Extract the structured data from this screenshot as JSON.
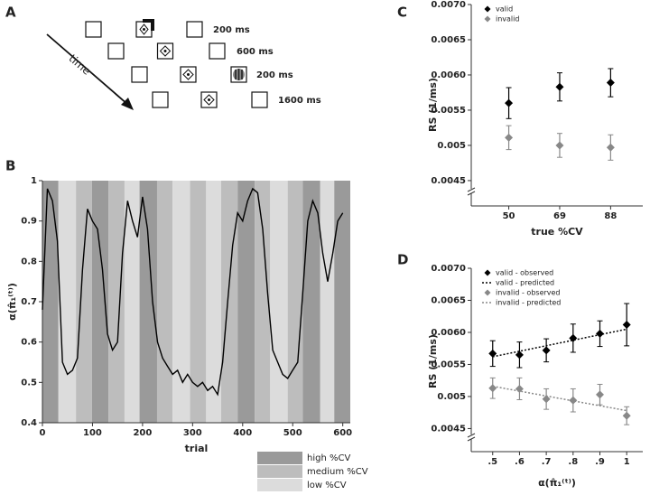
{
  "panel_a": {
    "label": "A",
    "arrow_label": "time",
    "durations": [
      "200 ms",
      "600 ms",
      "200 ms",
      "1600 ms"
    ]
  },
  "chart_data": [
    {
      "type": "line",
      "label": "B",
      "xlabel": "trial",
      "ylabel": "α(π̂₁⁽ᵗ⁾)",
      "x": [
        0,
        10,
        20,
        30,
        40,
        50,
        60,
        70,
        80,
        90,
        100,
        110,
        120,
        130,
        140,
        150,
        160,
        170,
        180,
        190,
        200,
        210,
        220,
        230,
        240,
        250,
        260,
        270,
        280,
        290,
        300,
        310,
        320,
        330,
        340,
        350,
        360,
        370,
        380,
        390,
        400,
        410,
        420,
        430,
        440,
        450,
        460,
        470,
        480,
        490,
        500,
        510,
        520,
        530,
        540,
        550,
        560,
        570,
        580,
        590,
        600
      ],
      "series": [
        {
          "color": "#000000",
          "values": [
            0.68,
            0.98,
            0.95,
            0.85,
            0.55,
            0.52,
            0.53,
            0.56,
            0.78,
            0.93,
            0.9,
            0.88,
            0.78,
            0.62,
            0.58,
            0.6,
            0.82,
            0.95,
            0.9,
            0.86,
            0.96,
            0.88,
            0.7,
            0.6,
            0.56,
            0.54,
            0.52,
            0.53,
            0.5,
            0.52,
            0.5,
            0.49,
            0.5,
            0.48,
            0.49,
            0.47,
            0.55,
            0.7,
            0.84,
            0.92,
            0.9,
            0.95,
            0.98,
            0.97,
            0.88,
            0.72,
            0.58,
            0.55,
            0.52,
            0.51,
            0.53,
            0.55,
            0.72,
            0.9,
            0.95,
            0.92,
            0.82,
            0.75,
            0.82,
            0.9,
            0.92
          ]
        }
      ],
      "xlim": [
        0,
        615
      ],
      "xticks": [
        0,
        100,
        200,
        300,
        400,
        500,
        600
      ],
      "ylim": [
        0.4,
        1
      ],
      "yticks": [
        0.4,
        0.5,
        0.6,
        0.7,
        0.8,
        0.9,
        1
      ],
      "bands": {
        "edges": [
          0,
          32,
          67,
          99,
          132,
          164,
          194,
          229,
          260,
          295,
          327,
          357,
          390,
          424,
          455,
          490,
          520,
          555,
          583,
          615
        ],
        "levels": [
          "high %CV",
          "low %CV",
          "medium %CV",
          "high %CV",
          "medium %CV",
          "low %CV",
          "high %CV",
          "medium %CV",
          "low %CV",
          "medium %CV",
          "low %CV",
          "medium %CV",
          "high %CV",
          "medium %CV",
          "low %CV",
          "medium %CV",
          "high %CV",
          "low %CV",
          "high %CV"
        ]
      },
      "legend": [
        {
          "name": "high %CV",
          "color": "#9a9a9a"
        },
        {
          "name": "medium %CV",
          "color": "#bdbdbd"
        },
        {
          "name": "low %CV",
          "color": "#dcdcdc"
        }
      ]
    },
    {
      "type": "scatter",
      "label": "C",
      "xlabel": "true %CV",
      "ylabel": "RS (1/ms)",
      "x": [
        50,
        69,
        88
      ],
      "xlim": [
        36,
        100
      ],
      "xticks": [
        50,
        69,
        88
      ],
      "ylim": [
        0.00414,
        0.007
      ],
      "yticks": [
        0.0045,
        0.005,
        0.0055,
        {
          "value": 0.006,
          "label": "0.0060"
        },
        0.0065,
        {
          "value": 0.007,
          "label": "0.0070"
        }
      ],
      "series": [
        {
          "name": "valid",
          "color": "#000000",
          "marker": "diamond",
          "values": [
            0.0056,
            0.00583,
            0.00589
          ],
          "errors": [
            0.00022,
            0.0002,
            0.0002
          ]
        },
        {
          "name": "invalid",
          "color": "#888888",
          "marker": "diamond",
          "values": [
            0.00511,
            0.005,
            0.00497
          ],
          "errors": [
            0.00017,
            0.00017,
            0.00018
          ]
        }
      ]
    },
    {
      "type": "scatter",
      "label": "D",
      "xlabel": "α(π̂₁⁽ᵗ⁾)",
      "ylabel": "RS (1/ms)",
      "x": [
        0.5,
        0.6,
        0.7,
        0.8,
        0.9,
        1
      ],
      "xlim": [
        0.42,
        1.06
      ],
      "xticks": [
        {
          "value": 0.5,
          "label": ".5"
        },
        {
          "value": 0.6,
          "label": ".6"
        },
        {
          "value": 0.7,
          "label": ".7"
        },
        {
          "value": 0.8,
          "label": ".8"
        },
        {
          "value": 0.9,
          "label": ".9"
        },
        1
      ],
      "ylim": [
        0.00414,
        0.007
      ],
      "yticks": [
        0.0045,
        0.005,
        0.0055,
        {
          "value": 0.006,
          "label": "0.0060"
        },
        0.0065,
        {
          "value": 0.007,
          "label": "0.0070"
        }
      ],
      "series": [
        {
          "name": "valid - observed",
          "color": "#000000",
          "marker": "diamond",
          "values": [
            0.00567,
            0.00565,
            0.00572,
            0.00591,
            0.00598,
            0.00612
          ],
          "errors": [
            0.0002,
            0.0002,
            0.00018,
            0.00022,
            0.0002,
            0.00033
          ]
        },
        {
          "name": "valid - predicted",
          "color": "#000000",
          "line": "dotted",
          "values": [
            0.00562,
            0.005706,
            0.005792,
            0.005878,
            0.005964,
            0.00605
          ]
        },
        {
          "name": "invalid - observed",
          "color": "#888888",
          "marker": "diamond",
          "values": [
            0.00513,
            0.00512,
            0.00496,
            0.00494,
            0.00503,
            0.0047
          ],
          "errors": [
            0.00016,
            0.00017,
            0.00016,
            0.00018,
            0.00016,
            0.00014
          ]
        },
        {
          "name": "invalid - predicted",
          "color": "#888888",
          "line": "dotted",
          "values": [
            0.00516,
            0.005084,
            0.005008,
            0.004932,
            0.004856,
            0.00478
          ]
        }
      ]
    }
  ]
}
